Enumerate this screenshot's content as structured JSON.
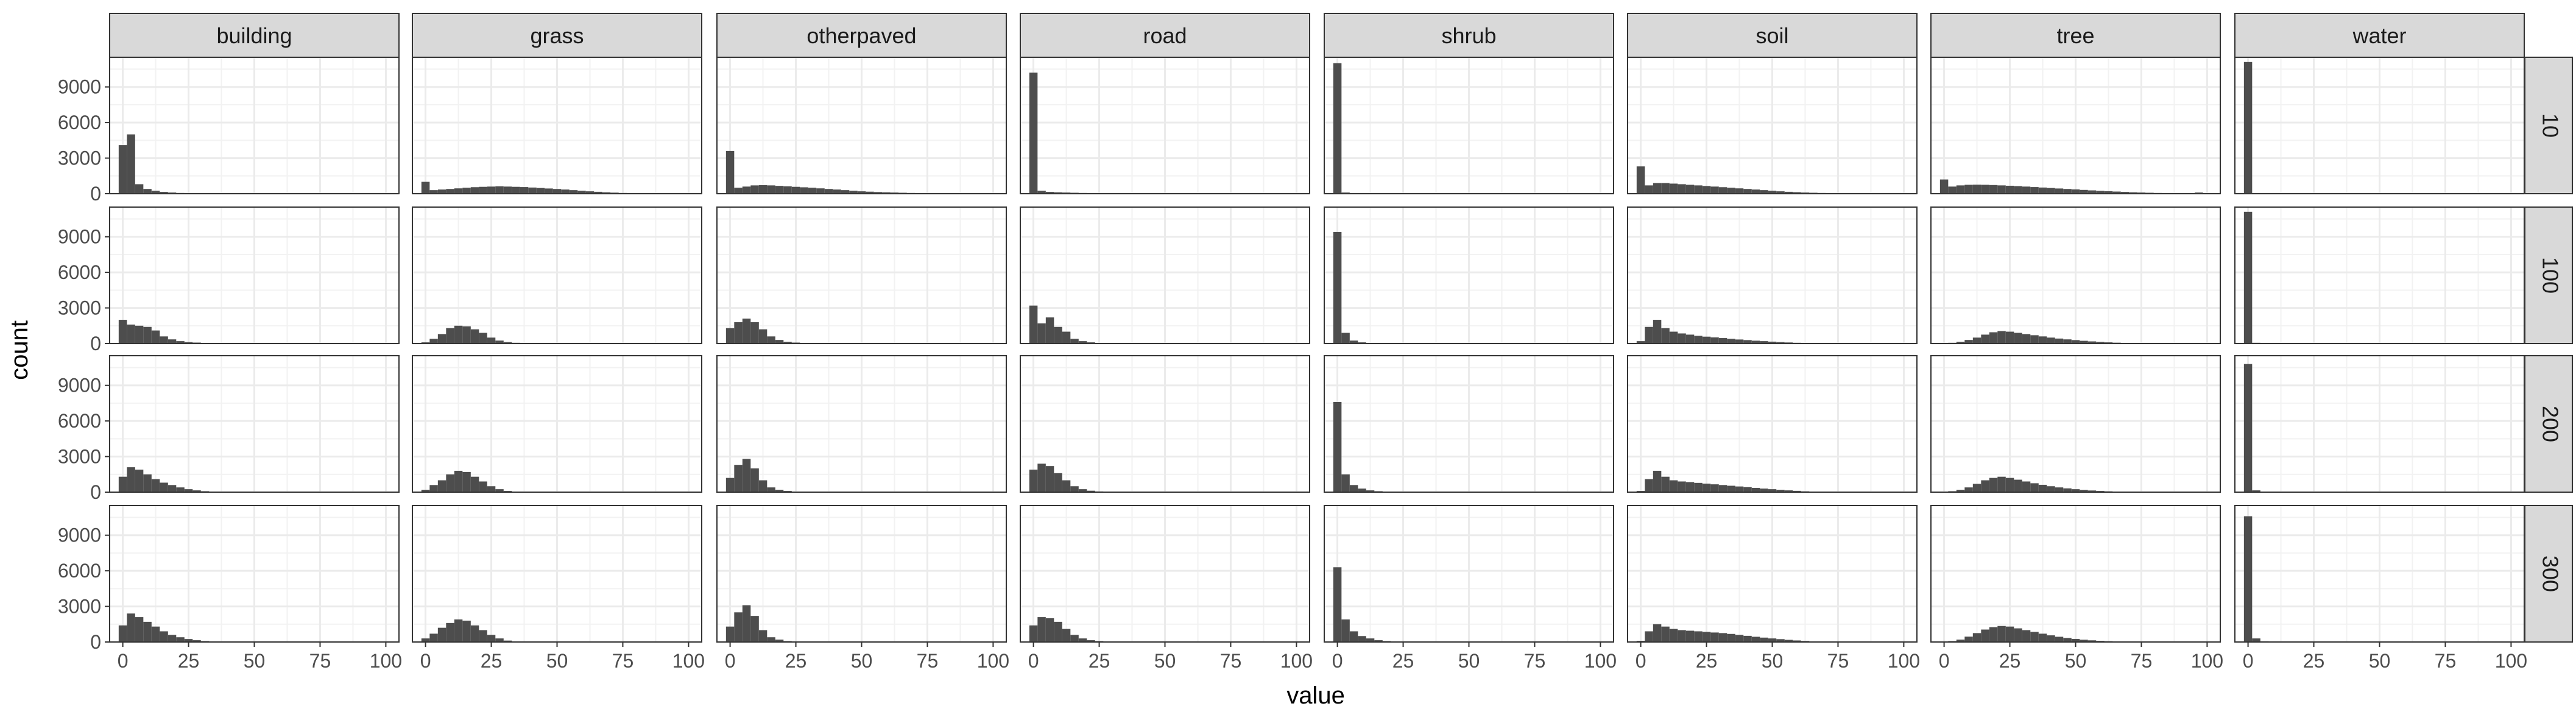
{
  "chart_data": {
    "type": "bar",
    "title": "",
    "xlabel": "value",
    "ylabel": "count",
    "xlim": [
      -5,
      105
    ],
    "ylim": [
      0,
      11500
    ],
    "x_ticks": [
      0,
      25,
      50,
      75,
      100
    ],
    "x_tick_labels": [
      "0",
      "25",
      "50",
      "75",
      "100"
    ],
    "y_ticks": [
      0,
      3000,
      6000,
      9000
    ],
    "y_tick_labels": [
      "0",
      "3000",
      "6000",
      "9000"
    ],
    "grid": true,
    "legend": "none",
    "bar_color": "#4d4d4d",
    "strip_fill": "#d9d9d9",
    "bin_width": 3.125,
    "bin_starts": [
      -1.5625,
      1.5625,
      4.6875,
      7.8125,
      10.9375,
      14.0625,
      17.1875,
      20.3125,
      23.4375,
      26.5625,
      29.6875,
      32.8125,
      35.9375,
      39.0625,
      42.1875,
      45.3125,
      48.4375,
      51.5625,
      54.6875,
      57.8125,
      60.9375,
      64.0625,
      67.1875,
      70.3125,
      73.4375,
      76.5625,
      79.6875,
      82.8125,
      85.9375,
      89.0625,
      92.1875,
      95.3125,
      98.4375
    ],
    "columns": [
      "building",
      "grass",
      "otherpaved",
      "road",
      "shrub",
      "soil",
      "tree",
      "water"
    ],
    "rows": [
      "10",
      "100",
      "200",
      "300"
    ],
    "panels": [
      {
        "column": "building",
        "row": "10",
        "counts": [
          4100,
          5000,
          800,
          400,
          250,
          150,
          100,
          60,
          40,
          20,
          10,
          5,
          0,
          0,
          0,
          0,
          0,
          0,
          0,
          0,
          0,
          0,
          0,
          0,
          0,
          0,
          0,
          0,
          0,
          0,
          0,
          0,
          0
        ]
      },
      {
        "column": "grass",
        "row": "10",
        "counts": [
          1000,
          300,
          350,
          400,
          450,
          500,
          550,
          580,
          600,
          620,
          600,
          580,
          560,
          520,
          480,
          440,
          400,
          350,
          300,
          250,
          200,
          160,
          120,
          90,
          60,
          40,
          30,
          20,
          10,
          5,
          0,
          0,
          0
        ]
      },
      {
        "column": "otherpaved",
        "row": "10",
        "counts": [
          3600,
          500,
          600,
          700,
          720,
          700,
          660,
          620,
          580,
          540,
          500,
          450,
          400,
          350,
          300,
          250,
          200,
          170,
          140,
          120,
          100,
          80,
          60,
          50,
          40,
          30,
          20,
          10,
          5,
          0,
          0,
          0,
          0
        ]
      },
      {
        "column": "road",
        "row": "10",
        "counts": [
          10200,
          250,
          150,
          120,
          100,
          80,
          60,
          50,
          40,
          30,
          20,
          10,
          5,
          0,
          0,
          0,
          0,
          0,
          0,
          0,
          0,
          0,
          0,
          0,
          0,
          0,
          0,
          0,
          0,
          0,
          0,
          0,
          0
        ]
      },
      {
        "column": "shrub",
        "row": "10",
        "counts": [
          11000,
          100,
          40,
          20,
          10,
          5,
          0,
          0,
          0,
          0,
          0,
          0,
          0,
          0,
          0,
          0,
          0,
          0,
          0,
          0,
          0,
          0,
          0,
          0,
          0,
          0,
          0,
          0,
          0,
          0,
          0,
          0,
          0
        ]
      },
      {
        "column": "soil",
        "row": "10",
        "counts": [
          2300,
          700,
          900,
          900,
          850,
          800,
          750,
          700,
          650,
          600,
          550,
          500,
          450,
          400,
          350,
          300,
          250,
          200,
          160,
          130,
          100,
          80,
          60,
          40,
          30,
          20,
          10,
          5,
          0,
          0,
          0,
          0,
          0
        ]
      },
      {
        "column": "tree",
        "row": "10",
        "counts": [
          1200,
          600,
          700,
          750,
          760,
          750,
          730,
          700,
          670,
          640,
          600,
          560,
          520,
          480,
          440,
          400,
          360,
          320,
          280,
          240,
          210,
          180,
          150,
          120,
          100,
          80,
          60,
          50,
          40,
          30,
          20,
          100,
          0
        ]
      },
      {
        "column": "water",
        "row": "10",
        "counts": [
          11100,
          40,
          10,
          0,
          0,
          0,
          0,
          0,
          0,
          0,
          0,
          0,
          0,
          0,
          0,
          0,
          0,
          0,
          0,
          0,
          0,
          0,
          0,
          0,
          0,
          0,
          0,
          0,
          0,
          0,
          0,
          0,
          0
        ]
      },
      {
        "column": "building",
        "row": "100",
        "counts": [
          2000,
          1600,
          1500,
          1400,
          1100,
          600,
          350,
          200,
          120,
          80,
          50,
          30,
          15,
          5,
          0,
          0,
          0,
          0,
          0,
          0,
          0,
          0,
          0,
          0,
          0,
          0,
          0,
          0,
          0,
          0,
          0,
          0,
          0
        ]
      },
      {
        "column": "grass",
        "row": "100",
        "counts": [
          100,
          400,
          800,
          1300,
          1500,
          1450,
          1200,
          900,
          500,
          250,
          120,
          60,
          30,
          10,
          0,
          0,
          0,
          0,
          0,
          0,
          0,
          0,
          0,
          0,
          0,
          0,
          0,
          0,
          0,
          0,
          0,
          0,
          0
        ]
      },
      {
        "column": "otherpaved",
        "row": "100",
        "counts": [
          1300,
          1800,
          2100,
          1800,
          1200,
          600,
          300,
          150,
          80,
          40,
          20,
          10,
          0,
          0,
          0,
          0,
          0,
          0,
          0,
          0,
          0,
          0,
          0,
          0,
          0,
          0,
          0,
          0,
          0,
          0,
          0,
          0,
          0
        ]
      },
      {
        "column": "road",
        "row": "100",
        "counts": [
          3200,
          1700,
          2200,
          1400,
          1000,
          400,
          200,
          100,
          50,
          20,
          10,
          0,
          0,
          0,
          0,
          0,
          0,
          0,
          0,
          0,
          0,
          0,
          0,
          0,
          0,
          0,
          0,
          0,
          0,
          0,
          0,
          0,
          0
        ]
      },
      {
        "column": "shrub",
        "row": "100",
        "counts": [
          9400,
          900,
          250,
          100,
          50,
          20,
          10,
          0,
          0,
          0,
          0,
          0,
          0,
          0,
          0,
          0,
          0,
          0,
          0,
          0,
          0,
          0,
          0,
          0,
          0,
          0,
          0,
          0,
          0,
          0,
          0,
          0,
          0
        ]
      },
      {
        "column": "soil",
        "row": "100",
        "counts": [
          200,
          1400,
          2000,
          1300,
          1000,
          850,
          750,
          650,
          580,
          520,
          460,
          400,
          340,
          290,
          240,
          200,
          160,
          120,
          90,
          60,
          40,
          20,
          10,
          0,
          0,
          0,
          0,
          0,
          0,
          0,
          0,
          0,
          0
        ]
      },
      {
        "column": "tree",
        "row": "100",
        "counts": [
          20,
          60,
          150,
          300,
          500,
          750,
          950,
          1050,
          1000,
          900,
          800,
          700,
          600,
          500,
          420,
          350,
          290,
          230,
          180,
          140,
          100,
          70,
          50,
          30,
          20,
          10,
          0,
          0,
          0,
          0,
          0,
          0,
          0
        ]
      },
      {
        "column": "water",
        "row": "100",
        "counts": [
          11100,
          60,
          10,
          0,
          0,
          0,
          0,
          0,
          0,
          0,
          0,
          0,
          0,
          0,
          0,
          0,
          0,
          0,
          0,
          0,
          0,
          0,
          0,
          0,
          0,
          0,
          0,
          0,
          0,
          0,
          0,
          0,
          0
        ]
      },
      {
        "column": "building",
        "row": "200",
        "counts": [
          1300,
          2100,
          1900,
          1500,
          1100,
          800,
          600,
          400,
          250,
          150,
          80,
          40,
          20,
          5,
          0,
          0,
          0,
          0,
          0,
          0,
          0,
          0,
          0,
          0,
          0,
          0,
          0,
          0,
          0,
          0,
          0,
          0,
          0
        ]
      },
      {
        "column": "grass",
        "row": "200",
        "counts": [
          200,
          600,
          1000,
          1500,
          1800,
          1700,
          1300,
          900,
          500,
          250,
          100,
          40,
          10,
          0,
          0,
          0,
          0,
          0,
          0,
          0,
          0,
          0,
          0,
          0,
          0,
          0,
          0,
          0,
          0,
          0,
          0,
          0,
          0
        ]
      },
      {
        "column": "otherpaved",
        "row": "200",
        "counts": [
          1200,
          2300,
          2800,
          2000,
          1000,
          400,
          200,
          100,
          50,
          20,
          0,
          0,
          0,
          0,
          0,
          0,
          0,
          0,
          0,
          0,
          0,
          0,
          0,
          0,
          0,
          0,
          0,
          0,
          0,
          0,
          0,
          0,
          0
        ]
      },
      {
        "column": "road",
        "row": "200",
        "counts": [
          1900,
          2400,
          2200,
          1600,
          1000,
          500,
          250,
          120,
          60,
          30,
          10,
          0,
          0,
          0,
          0,
          0,
          0,
          0,
          0,
          0,
          0,
          0,
          0,
          0,
          0,
          0,
          0,
          0,
          0,
          0,
          0,
          0,
          0
        ]
      },
      {
        "column": "shrub",
        "row": "200",
        "counts": [
          7600,
          1500,
          600,
          300,
          150,
          80,
          40,
          20,
          10,
          0,
          0,
          0,
          0,
          0,
          0,
          0,
          0,
          0,
          0,
          0,
          0,
          0,
          0,
          0,
          0,
          0,
          0,
          0,
          0,
          0,
          0,
          0,
          0
        ]
      },
      {
        "column": "soil",
        "row": "200",
        "counts": [
          100,
          1100,
          1800,
          1300,
          1000,
          900,
          850,
          780,
          720,
          660,
          600,
          540,
          480,
          420,
          360,
          300,
          250,
          200,
          150,
          110,
          70,
          40,
          20,
          0,
          0,
          0,
          0,
          0,
          0,
          0,
          0,
          0,
          0
        ]
      },
      {
        "column": "tree",
        "row": "200",
        "counts": [
          20,
          80,
          200,
          400,
          700,
          1000,
          1200,
          1300,
          1200,
          1050,
          900,
          750,
          620,
          500,
          400,
          320,
          250,
          190,
          140,
          100,
          70,
          40,
          20,
          10,
          0,
          0,
          0,
          0,
          0,
          0,
          0,
          0,
          0
        ]
      },
      {
        "column": "water",
        "row": "200",
        "counts": [
          10800,
          150,
          40,
          20,
          10,
          0,
          0,
          0,
          0,
          0,
          0,
          0,
          0,
          0,
          0,
          0,
          0,
          0,
          0,
          0,
          0,
          0,
          0,
          0,
          0,
          0,
          0,
          0,
          0,
          0,
          0,
          0,
          0
        ]
      },
      {
        "column": "building",
        "row": "300",
        "counts": [
          1400,
          2400,
          2100,
          1700,
          1300,
          900,
          600,
          400,
          250,
          150,
          80,
          40,
          20,
          5,
          0,
          0,
          0,
          0,
          0,
          0,
          0,
          0,
          0,
          0,
          0,
          0,
          0,
          0,
          0,
          0,
          0,
          0,
          0
        ]
      },
      {
        "column": "grass",
        "row": "300",
        "counts": [
          300,
          700,
          1200,
          1600,
          1900,
          1800,
          1400,
          1000,
          600,
          300,
          120,
          50,
          10,
          0,
          0,
          0,
          0,
          0,
          0,
          0,
          0,
          0,
          0,
          0,
          0,
          0,
          0,
          0,
          0,
          0,
          0,
          0,
          0
        ]
      },
      {
        "column": "otherpaved",
        "row": "300",
        "counts": [
          1300,
          2500,
          3100,
          2200,
          1000,
          400,
          200,
          80,
          30,
          10,
          0,
          0,
          0,
          0,
          0,
          0,
          0,
          0,
          0,
          0,
          0,
          0,
          0,
          0,
          0,
          0,
          0,
          0,
          0,
          0,
          0,
          0,
          0
        ]
      },
      {
        "column": "road",
        "row": "300",
        "counts": [
          1400,
          2100,
          2000,
          1700,
          1100,
          600,
          300,
          150,
          80,
          40,
          10,
          0,
          0,
          0,
          0,
          0,
          0,
          0,
          0,
          0,
          0,
          0,
          0,
          0,
          0,
          0,
          0,
          0,
          0,
          0,
          0,
          0,
          0
        ]
      },
      {
        "column": "shrub",
        "row": "300",
        "counts": [
          6300,
          1900,
          900,
          500,
          300,
          150,
          80,
          40,
          20,
          10,
          0,
          0,
          0,
          0,
          0,
          0,
          0,
          0,
          0,
          0,
          0,
          0,
          0,
          0,
          0,
          0,
          0,
          0,
          0,
          0,
          0,
          0,
          0
        ]
      },
      {
        "column": "soil",
        "row": "300",
        "counts": [
          100,
          900,
          1500,
          1300,
          1100,
          1000,
          950,
          900,
          850,
          800,
          750,
          680,
          600,
          520,
          440,
          370,
          300,
          240,
          180,
          130,
          90,
          50,
          20,
          0,
          0,
          0,
          0,
          0,
          0,
          0,
          0,
          0,
          0
        ]
      },
      {
        "column": "tree",
        "row": "300",
        "counts": [
          20,
          80,
          200,
          450,
          750,
          1050,
          1250,
          1350,
          1300,
          1150,
          1000,
          850,
          700,
          560,
          440,
          340,
          260,
          190,
          140,
          100,
          70,
          40,
          20,
          10,
          0,
          0,
          0,
          0,
          0,
          0,
          0,
          0,
          0
        ]
      },
      {
        "column": "water",
        "row": "300",
        "counts": [
          10600,
          300,
          60,
          30,
          10,
          0,
          0,
          0,
          0,
          0,
          0,
          0,
          0,
          0,
          0,
          0,
          0,
          0,
          0,
          0,
          0,
          0,
          0,
          0,
          0,
          0,
          0,
          0,
          0,
          0,
          0,
          0,
          0
        ]
      }
    ]
  }
}
